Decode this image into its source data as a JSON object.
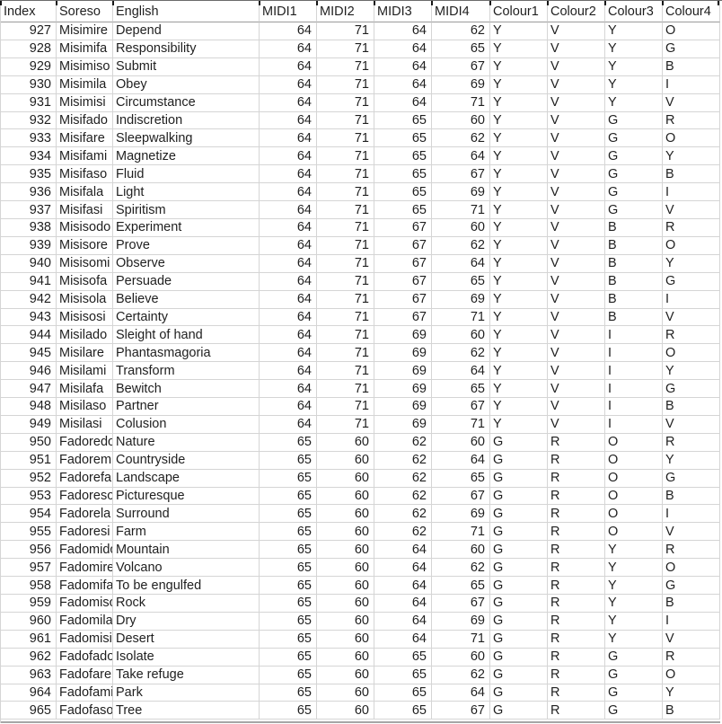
{
  "table": {
    "columns": [
      {
        "key": "index",
        "label": "Index",
        "align": "r"
      },
      {
        "key": "soreso",
        "label": "Soreso",
        "align": "l"
      },
      {
        "key": "english",
        "label": "English",
        "align": "l"
      },
      {
        "key": "midi1",
        "label": "MIDI1",
        "align": "r"
      },
      {
        "key": "midi2",
        "label": "MIDI2",
        "align": "r"
      },
      {
        "key": "midi3",
        "label": "MIDI3",
        "align": "r"
      },
      {
        "key": "midi4",
        "label": "MIDI4",
        "align": "r"
      },
      {
        "key": "colour1",
        "label": "Colour1",
        "align": "l"
      },
      {
        "key": "colour2",
        "label": "Colour2",
        "align": "l"
      },
      {
        "key": "colour3",
        "label": "Colour3",
        "align": "l"
      },
      {
        "key": "colour4",
        "label": "Colour4",
        "align": "l"
      }
    ],
    "rows": [
      [
        927,
        "Misimire",
        "Depend",
        64,
        71,
        64,
        62,
        "Y",
        "V",
        "Y",
        "O"
      ],
      [
        928,
        "Misimifa",
        "Responsibility",
        64,
        71,
        64,
        65,
        "Y",
        "V",
        "Y",
        "G"
      ],
      [
        929,
        "Misimiso",
        "Submit",
        64,
        71,
        64,
        67,
        "Y",
        "V",
        "Y",
        "B"
      ],
      [
        930,
        "Misimila",
        "Obey",
        64,
        71,
        64,
        69,
        "Y",
        "V",
        "Y",
        "I"
      ],
      [
        931,
        "Misimisi",
        "Circumstance",
        64,
        71,
        64,
        71,
        "Y",
        "V",
        "Y",
        "V"
      ],
      [
        932,
        "Misifado",
        "Indiscretion",
        64,
        71,
        65,
        60,
        "Y",
        "V",
        "G",
        "R"
      ],
      [
        933,
        "Misifare",
        "Sleepwalking",
        64,
        71,
        65,
        62,
        "Y",
        "V",
        "G",
        "O"
      ],
      [
        934,
        "Misifami",
        "Magnetize",
        64,
        71,
        65,
        64,
        "Y",
        "V",
        "G",
        "Y"
      ],
      [
        935,
        "Misifaso",
        "Fluid",
        64,
        71,
        65,
        67,
        "Y",
        "V",
        "G",
        "B"
      ],
      [
        936,
        "Misifala",
        "Light",
        64,
        71,
        65,
        69,
        "Y",
        "V",
        "G",
        "I"
      ],
      [
        937,
        "Misifasi",
        "Spiritism",
        64,
        71,
        65,
        71,
        "Y",
        "V",
        "G",
        "V"
      ],
      [
        938,
        "Misisodo",
        "Experiment",
        64,
        71,
        67,
        60,
        "Y",
        "V",
        "B",
        "R"
      ],
      [
        939,
        "Misisore",
        "Prove",
        64,
        71,
        67,
        62,
        "Y",
        "V",
        "B",
        "O"
      ],
      [
        940,
        "Misisomi",
        "Observe",
        64,
        71,
        67,
        64,
        "Y",
        "V",
        "B",
        "Y"
      ],
      [
        941,
        "Misisofa",
        "Persuade",
        64,
        71,
        67,
        65,
        "Y",
        "V",
        "B",
        "G"
      ],
      [
        942,
        "Misisola",
        "Believe",
        64,
        71,
        67,
        69,
        "Y",
        "V",
        "B",
        "I"
      ],
      [
        943,
        "Misisosi",
        "Certainty",
        64,
        71,
        67,
        71,
        "Y",
        "V",
        "B",
        "V"
      ],
      [
        944,
        "Misilado",
        "Sleight of hand",
        64,
        71,
        69,
        60,
        "Y",
        "V",
        "I",
        "R"
      ],
      [
        945,
        "Misilare",
        "Phantasmagoria",
        64,
        71,
        69,
        62,
        "Y",
        "V",
        "I",
        "O"
      ],
      [
        946,
        "Misilami",
        "Transform",
        64,
        71,
        69,
        64,
        "Y",
        "V",
        "I",
        "Y"
      ],
      [
        947,
        "Misilafa",
        "Bewitch",
        64,
        71,
        69,
        65,
        "Y",
        "V",
        "I",
        "G"
      ],
      [
        948,
        "Misilaso",
        "Partner",
        64,
        71,
        69,
        67,
        "Y",
        "V",
        "I",
        "B"
      ],
      [
        949,
        "Misilasi",
        "Colusion",
        64,
        71,
        69,
        71,
        "Y",
        "V",
        "I",
        "V"
      ],
      [
        950,
        "Fadoredo",
        "Nature",
        65,
        60,
        62,
        60,
        "G",
        "R",
        "O",
        "R"
      ],
      [
        951,
        "Fadoremi",
        "Countryside",
        65,
        60,
        62,
        64,
        "G",
        "R",
        "O",
        "Y"
      ],
      [
        952,
        "Fadorefa",
        "Landscape",
        65,
        60,
        62,
        65,
        "G",
        "R",
        "O",
        "G"
      ],
      [
        953,
        "Fadoreso",
        "Picturesque",
        65,
        60,
        62,
        67,
        "G",
        "R",
        "O",
        "B"
      ],
      [
        954,
        "Fadorela",
        "Surround",
        65,
        60,
        62,
        69,
        "G",
        "R",
        "O",
        "I"
      ],
      [
        955,
        "Fadoresi",
        "Farm",
        65,
        60,
        62,
        71,
        "G",
        "R",
        "O",
        "V"
      ],
      [
        956,
        "Fadomido",
        "Mountain",
        65,
        60,
        64,
        60,
        "G",
        "R",
        "Y",
        "R"
      ],
      [
        957,
        "Fadomire",
        "Volcano",
        65,
        60,
        64,
        62,
        "G",
        "R",
        "Y",
        "O"
      ],
      [
        958,
        "Fadomifa",
        "To be engulfed",
        65,
        60,
        64,
        65,
        "G",
        "R",
        "Y",
        "G"
      ],
      [
        959,
        "Fadomiso",
        "Rock",
        65,
        60,
        64,
        67,
        "G",
        "R",
        "Y",
        "B"
      ],
      [
        960,
        "Fadomila",
        "Dry",
        65,
        60,
        64,
        69,
        "G",
        "R",
        "Y",
        "I"
      ],
      [
        961,
        "Fadomisi",
        "Desert",
        65,
        60,
        64,
        71,
        "G",
        "R",
        "Y",
        "V"
      ],
      [
        962,
        "Fadofado",
        "Isolate",
        65,
        60,
        65,
        60,
        "G",
        "R",
        "G",
        "R"
      ],
      [
        963,
        "Fadofare",
        "Take refuge",
        65,
        60,
        65,
        62,
        "G",
        "R",
        "G",
        "O"
      ],
      [
        964,
        "Fadofami",
        "Park",
        65,
        60,
        65,
        64,
        "G",
        "R",
        "G",
        "Y"
      ],
      [
        965,
        "Fadofaso",
        "Tree",
        65,
        60,
        65,
        67,
        "G",
        "R",
        "G",
        "B"
      ]
    ]
  },
  "colors": {
    "background": "#ffffff",
    "text": "#1f1f1f",
    "gridline": "#d5d5d5",
    "header_border": "#9b9b9b",
    "top_border": "#6b6b6b",
    "tick": "#161616",
    "bottom_border": "#a6a6a6"
  }
}
